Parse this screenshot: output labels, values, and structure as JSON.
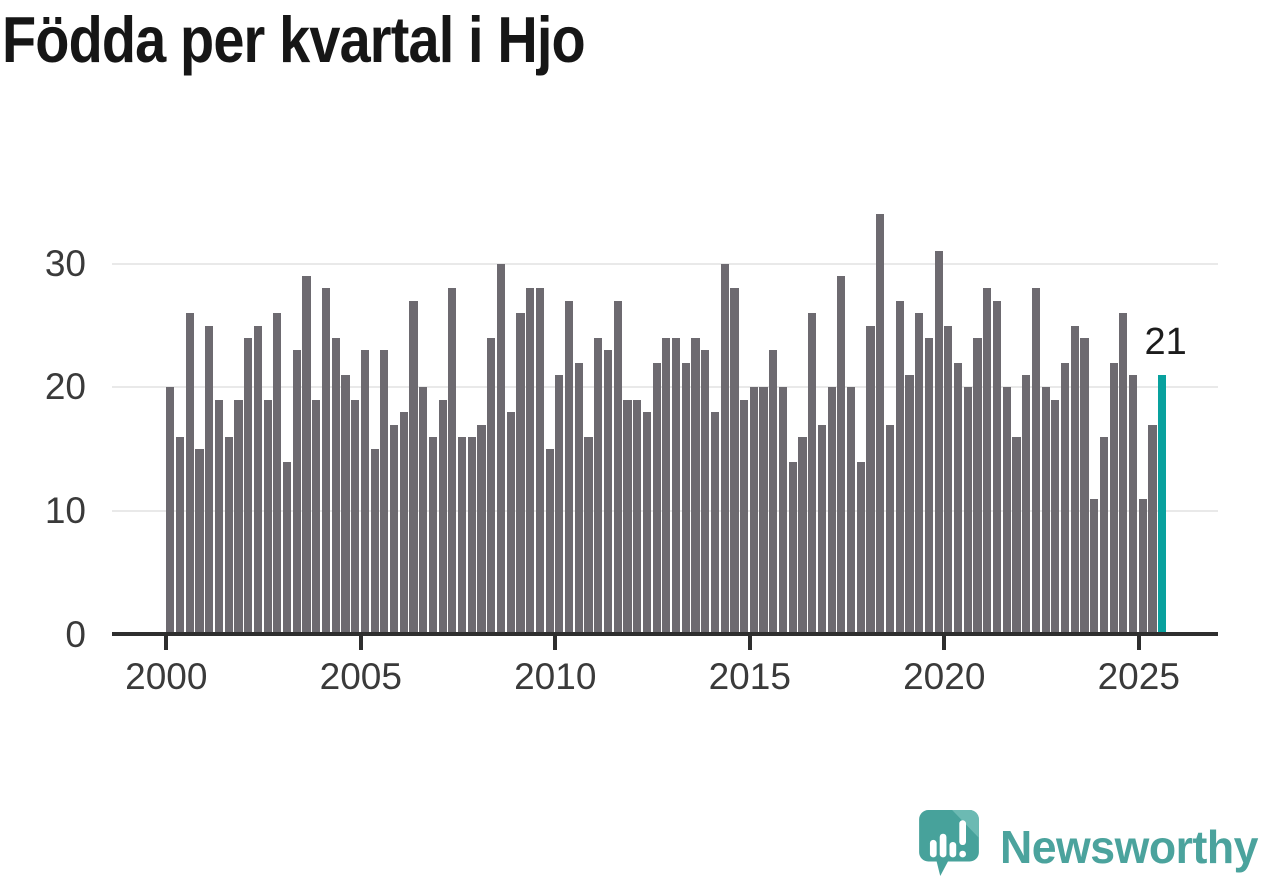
{
  "title": "Födda per kvartal i Hjo",
  "chart_data": {
    "type": "bar",
    "title": "Födda per kvartal i Hjo",
    "period": "quarterly",
    "start_tick": "2000",
    "values": [
      20,
      16,
      26,
      15,
      25,
      19,
      16,
      19,
      24,
      25,
      19,
      26,
      14,
      23,
      29,
      19,
      28,
      24,
      21,
      19,
      23,
      15,
      23,
      17,
      18,
      27,
      20,
      16,
      19,
      28,
      16,
      16,
      17,
      24,
      30,
      18,
      26,
      28,
      28,
      15,
      21,
      27,
      22,
      16,
      24,
      23,
      27,
      19,
      19,
      18,
      22,
      24,
      24,
      22,
      24,
      23,
      18,
      30,
      28,
      19,
      20,
      20,
      23,
      20,
      14,
      16,
      26,
      17,
      20,
      29,
      20,
      14,
      25,
      34,
      17,
      27,
      21,
      26,
      24,
      31,
      25,
      22,
      20,
      24,
      28,
      27,
      20,
      16,
      21,
      28,
      20,
      19,
      22,
      25,
      24,
      11,
      16,
      22,
      26,
      21,
      11,
      17,
      21
    ],
    "x_tick_labels": [
      "2000",
      "2005",
      "2010",
      "2015",
      "2020",
      "2025"
    ],
    "y_ticks": [
      0,
      10,
      20,
      30
    ],
    "ylim": [
      0,
      35.5
    ],
    "grid": true,
    "legend": false,
    "bar_color": "#6d6a70",
    "highlight_index": 102,
    "highlight_color": "#08a19e",
    "highlight_value_label": "21"
  },
  "logo": {
    "brand": "Newsworthy",
    "icon": "newsworthy-speech-bubble-chart-icon",
    "wordmark_color": "#4ba39d",
    "icon_color": "#47a29b",
    "icon_fold_color": "#6cbab3"
  }
}
